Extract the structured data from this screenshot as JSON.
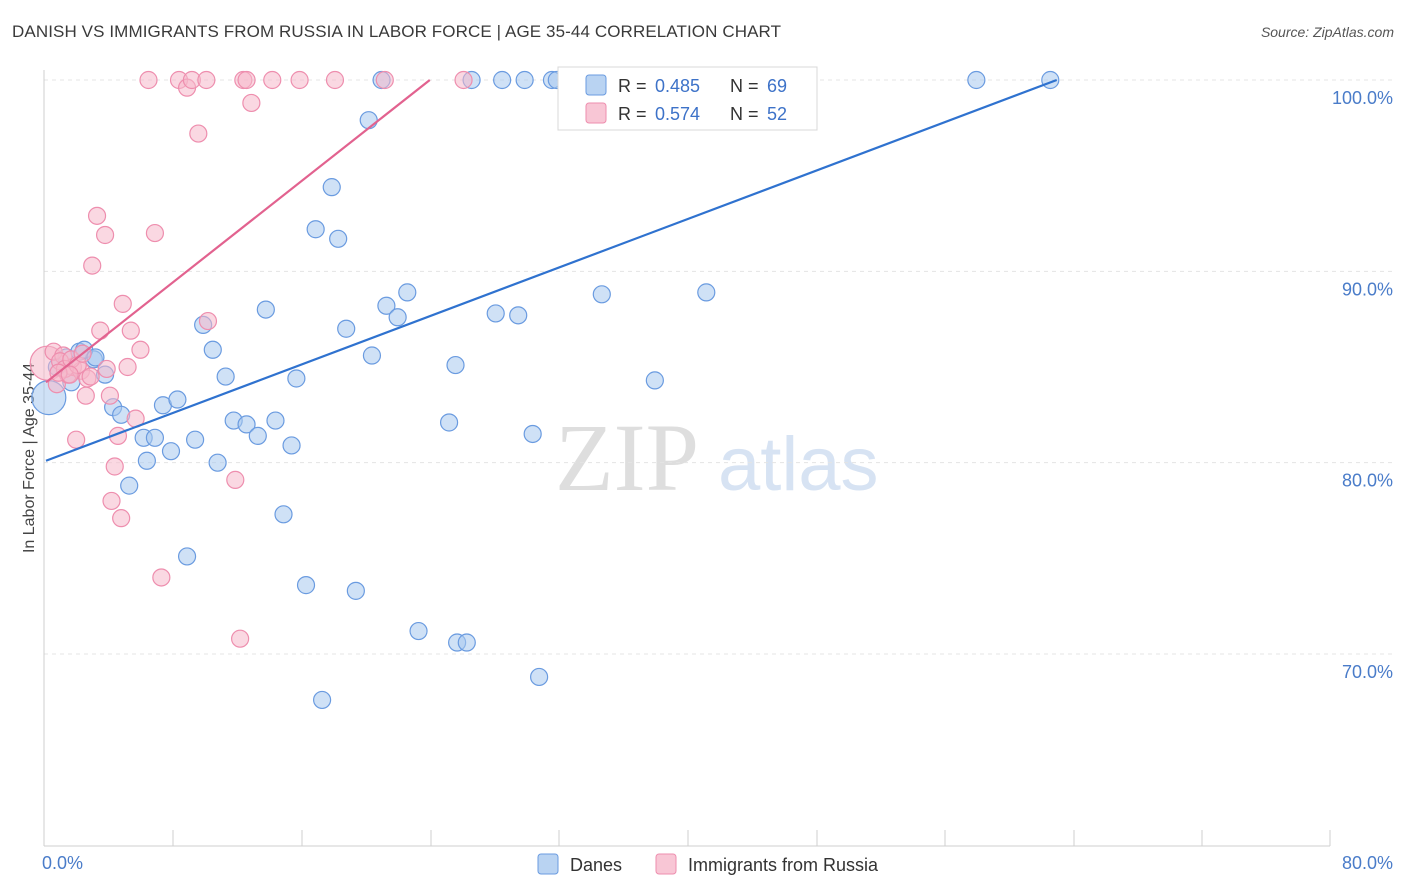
{
  "title": "DANISH VS IMMIGRANTS FROM RUSSIA IN LABOR FORCE | AGE 35-44 CORRELATION CHART",
  "source": "Source: ZipAtlas.com",
  "watermark": {
    "part1": "ZIP",
    "part2": "atlas"
  },
  "colors": {
    "blue_fill": "#a8c8ef",
    "blue_stroke": "#6a9be0",
    "blue_line": "#2f72cf",
    "pink_fill": "#f6b8cb",
    "pink_stroke": "#ee8eae",
    "pink_line": "#e2628f"
  },
  "legend": {
    "rows": [
      {
        "r_label": "R =",
        "r_value": "0.485",
        "n_label": "N =",
        "n_value": "69"
      },
      {
        "r_label": "R =",
        "r_value": "0.574",
        "n_label": "N =",
        "n_value": "52"
      }
    ]
  },
  "bottom_legend": {
    "series1": "Danes",
    "series2": "Immigrants from Russia"
  },
  "chart_data": {
    "type": "scatter",
    "title": "DANISH VS IMMIGRANTS FROM RUSSIA IN LABOR FORCE | AGE 35-44 CORRELATION CHART",
    "xlabel": "",
    "ylabel": "In Labor Force | Age 35-44",
    "xlim": [
      0,
      80
    ],
    "ylim": [
      60.5,
      101.5
    ],
    "x_tick_labels": [
      "0.0%",
      "80.0%"
    ],
    "y_ticks": [
      70,
      80,
      90,
      100
    ],
    "y_tick_labels": [
      "70.0%",
      "80.0%",
      "90.0%",
      "100.0%"
    ],
    "series": [
      {
        "name": "Danes",
        "r": 0.485,
        "n": 69,
        "trend": {
          "x": [
            0,
            63
          ],
          "y": [
            80.1,
            100.0
          ]
        },
        "points": [
          {
            "x": 0.3,
            "y": 83.4,
            "s": "big"
          },
          {
            "x": 0.8,
            "y": 85.0
          },
          {
            "x": 1.4,
            "y": 85.5
          },
          {
            "x": 1.7,
            "y": 84.2
          },
          {
            "x": 2.2,
            "y": 85.8
          },
          {
            "x": 3.1,
            "y": 85.4
          },
          {
            "x": 3.8,
            "y": 84.6
          },
          {
            "x": 4.3,
            "y": 82.9
          },
          {
            "x": 4.8,
            "y": 82.5
          },
          {
            "x": 5.3,
            "y": 78.8
          },
          {
            "x": 6.2,
            "y": 81.3
          },
          {
            "x": 6.4,
            "y": 80.1
          },
          {
            "x": 6.9,
            "y": 81.3
          },
          {
            "x": 7.4,
            "y": 83.0
          },
          {
            "x": 7.9,
            "y": 80.6
          },
          {
            "x": 8.3,
            "y": 83.3
          },
          {
            "x": 8.9,
            "y": 75.1
          },
          {
            "x": 9.4,
            "y": 81.2
          },
          {
            "x": 9.9,
            "y": 87.2
          },
          {
            "x": 10.5,
            "y": 85.9
          },
          {
            "x": 10.8,
            "y": 80.0
          },
          {
            "x": 11.3,
            "y": 84.5
          },
          {
            "x": 11.8,
            "y": 82.2
          },
          {
            "x": 12.6,
            "y": 82.0
          },
          {
            "x": 13.3,
            "y": 81.4
          },
          {
            "x": 13.8,
            "y": 88.0
          },
          {
            "x": 14.4,
            "y": 82.2
          },
          {
            "x": 14.9,
            "y": 77.3
          },
          {
            "x": 15.4,
            "y": 80.9
          },
          {
            "x": 15.7,
            "y": 84.4
          },
          {
            "x": 16.3,
            "y": 73.6
          },
          {
            "x": 16.9,
            "y": 92.2
          },
          {
            "x": 17.3,
            "y": 67.6
          },
          {
            "x": 17.9,
            "y": 94.4
          },
          {
            "x": 18.3,
            "y": 91.7
          },
          {
            "x": 18.8,
            "y": 87.0
          },
          {
            "x": 19.4,
            "y": 73.3
          },
          {
            "x": 20.2,
            "y": 97.9
          },
          {
            "x": 20.4,
            "y": 85.6
          },
          {
            "x": 21.0,
            "y": 100.0
          },
          {
            "x": 21.3,
            "y": 88.2
          },
          {
            "x": 22.0,
            "y": 87.6
          },
          {
            "x": 22.6,
            "y": 88.9
          },
          {
            "x": 23.3,
            "y": 71.2
          },
          {
            "x": 25.2,
            "y": 82.1
          },
          {
            "x": 25.6,
            "y": 85.1
          },
          {
            "x": 25.7,
            "y": 70.6
          },
          {
            "x": 26.3,
            "y": 70.6
          },
          {
            "x": 26.6,
            "y": 100.0
          },
          {
            "x": 28.1,
            "y": 87.8
          },
          {
            "x": 28.5,
            "y": 100.0
          },
          {
            "x": 29.5,
            "y": 87.7
          },
          {
            "x": 29.9,
            "y": 100.0
          },
          {
            "x": 30.4,
            "y": 81.5
          },
          {
            "x": 30.8,
            "y": 68.8
          },
          {
            "x": 31.6,
            "y": 100.0
          },
          {
            "x": 31.9,
            "y": 100.0
          },
          {
            "x": 32.6,
            "y": 100.0
          },
          {
            "x": 34.2,
            "y": 100.0
          },
          {
            "x": 34.7,
            "y": 88.8
          },
          {
            "x": 36.6,
            "y": 100.0
          },
          {
            "x": 38.0,
            "y": 84.3
          },
          {
            "x": 40.5,
            "y": 100.0
          },
          {
            "x": 41.2,
            "y": 88.9
          },
          {
            "x": 47.0,
            "y": 100.0
          },
          {
            "x": 58.0,
            "y": 100.0
          },
          {
            "x": 62.6,
            "y": 100.0
          },
          {
            "x": 2.5,
            "y": 85.9
          },
          {
            "x": 3.2,
            "y": 85.5
          }
        ]
      },
      {
        "name": "Immigrants from Russia",
        "r": 0.574,
        "n": 52,
        "trend": {
          "x": [
            0,
            24
          ],
          "y": [
            84.2,
            100.0
          ]
        },
        "points": [
          {
            "x": 0.2,
            "y": 85.2,
            "s": "big"
          },
          {
            "x": 0.6,
            "y": 85.8
          },
          {
            "x": 0.8,
            "y": 84.1
          },
          {
            "x": 1.2,
            "y": 85.6
          },
          {
            "x": 1.5,
            "y": 84.6
          },
          {
            "x": 1.8,
            "y": 85.0
          },
          {
            "x": 2.0,
            "y": 81.2
          },
          {
            "x": 2.3,
            "y": 84.8
          },
          {
            "x": 2.6,
            "y": 83.5
          },
          {
            "x": 2.7,
            "y": 84.4
          },
          {
            "x": 3.0,
            "y": 90.3
          },
          {
            "x": 3.3,
            "y": 92.9
          },
          {
            "x": 3.5,
            "y": 86.9
          },
          {
            "x": 3.8,
            "y": 91.9
          },
          {
            "x": 4.1,
            "y": 83.5
          },
          {
            "x": 4.2,
            "y": 78.0
          },
          {
            "x": 4.4,
            "y": 79.8
          },
          {
            "x": 4.6,
            "y": 81.4
          },
          {
            "x": 4.8,
            "y": 77.1
          },
          {
            "x": 4.9,
            "y": 88.3
          },
          {
            "x": 5.2,
            "y": 85.0
          },
          {
            "x": 5.4,
            "y": 86.9
          },
          {
            "x": 5.7,
            "y": 82.3
          },
          {
            "x": 6.0,
            "y": 85.9
          },
          {
            "x": 6.5,
            "y": 100.0
          },
          {
            "x": 6.9,
            "y": 92.0
          },
          {
            "x": 7.3,
            "y": 74.0
          },
          {
            "x": 8.4,
            "y": 100.0
          },
          {
            "x": 8.9,
            "y": 99.6
          },
          {
            "x": 9.2,
            "y": 100.0
          },
          {
            "x": 9.6,
            "y": 97.2
          },
          {
            "x": 10.1,
            "y": 100.0
          },
          {
            "x": 10.2,
            "y": 87.4
          },
          {
            "x": 11.9,
            "y": 79.1
          },
          {
            "x": 12.2,
            "y": 70.8
          },
          {
            "x": 12.4,
            "y": 100.0
          },
          {
            "x": 12.6,
            "y": 100.0
          },
          {
            "x": 12.9,
            "y": 98.8
          },
          {
            "x": 14.2,
            "y": 100.0
          },
          {
            "x": 15.9,
            "y": 100.0
          },
          {
            "x": 18.1,
            "y": 100.0
          },
          {
            "x": 21.2,
            "y": 100.0
          },
          {
            "x": 26.1,
            "y": 100.0
          },
          {
            "x": 1.0,
            "y": 85.3
          },
          {
            "x": 1.3,
            "y": 84.9
          },
          {
            "x": 1.7,
            "y": 85.4
          },
          {
            "x": 2.1,
            "y": 85.1
          },
          {
            "x": 2.4,
            "y": 85.7
          },
          {
            "x": 0.9,
            "y": 84.7
          },
          {
            "x": 1.6,
            "y": 84.6
          },
          {
            "x": 3.9,
            "y": 84.9
          },
          {
            "x": 2.9,
            "y": 84.5
          }
        ]
      }
    ]
  }
}
